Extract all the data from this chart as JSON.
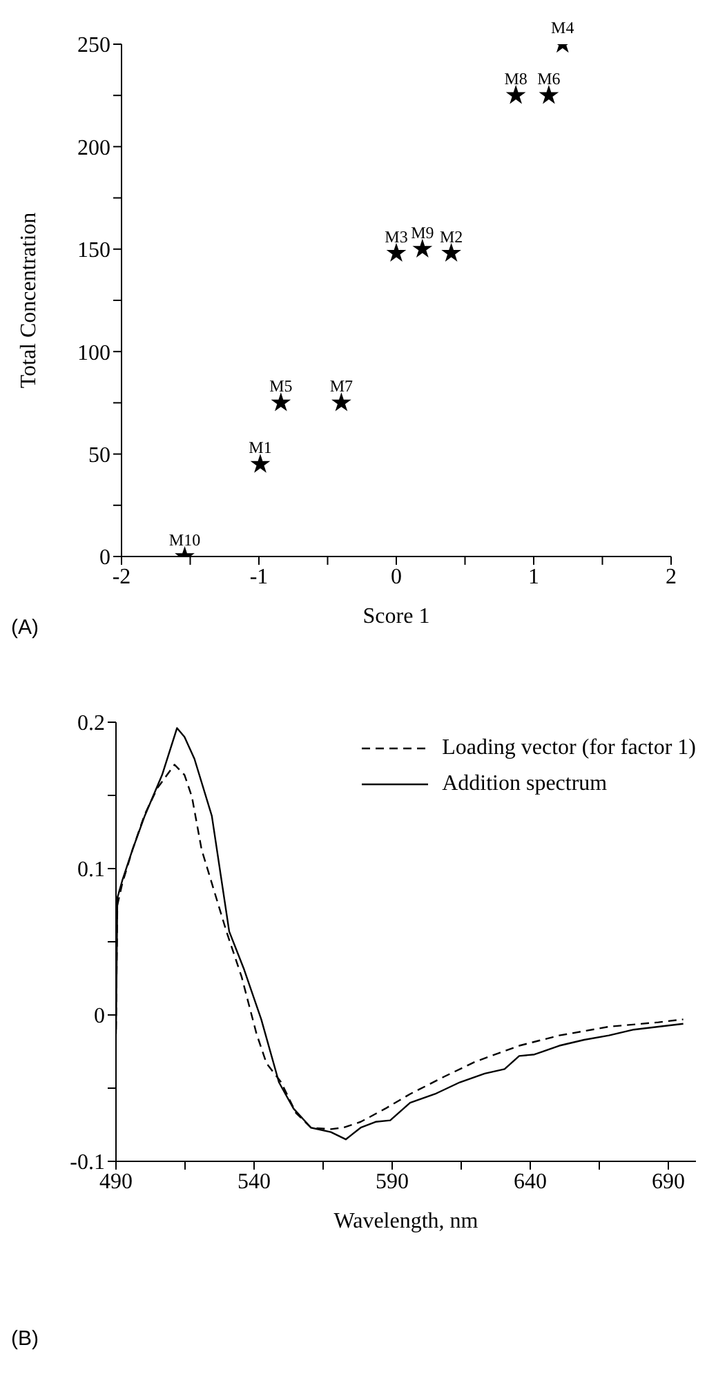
{
  "chart_data": [
    {
      "type": "scatter",
      "xlabel": "Score 1",
      "ylabel": "Total Concentration",
      "marker": "star",
      "color": "#000000",
      "x": [
        -0.99,
        0.4,
        0.0,
        1.21,
        -0.84,
        1.11,
        -0.4,
        0.87,
        0.19,
        -1.54
      ],
      "values": [
        45,
        148,
        148,
        250,
        75,
        225,
        75,
        225,
        150,
        0
      ],
      "xlim": [
        -2,
        2
      ],
      "xticks": [
        -2,
        {
          "value": -1.5,
          "label": null
        },
        -1,
        {
          "value": -0.5,
          "label": null
        },
        0,
        {
          "value": 0.5,
          "label": null
        },
        1,
        {
          "value": 1.5,
          "label": null
        },
        2
      ],
      "ylim": [
        0,
        250
      ],
      "yticks": [
        0,
        {
          "value": 25,
          "label": null
        },
        50,
        {
          "value": 75,
          "label": null
        },
        100,
        {
          "value": 125,
          "label": null
        },
        150,
        {
          "value": 175,
          "label": null
        },
        200,
        {
          "value": 225,
          "label": null
        },
        250
      ],
      "grid": false,
      "annotations": [
        "(A)",
        {
          "text": "M1",
          "x": -0.99,
          "y": 45
        },
        {
          "text": "M2",
          "x": 0.4,
          "y": 148
        },
        {
          "text": "M3",
          "x": 0.0,
          "y": 148
        },
        {
          "text": "M4",
          "x": 1.21,
          "y": 250
        },
        {
          "text": "M5",
          "x": -0.84,
          "y": 75
        },
        {
          "text": "M6",
          "x": 1.11,
          "y": 225
        },
        {
          "text": "M7",
          "x": -0.4,
          "y": 75
        },
        {
          "text": "M8",
          "x": 0.87,
          "y": 225
        },
        {
          "text": "M9",
          "x": 0.19,
          "y": 150
        },
        {
          "text": "M10",
          "x": -1.54,
          "y": 0
        }
      ]
    },
    {
      "type": "line",
      "xlabel": "Wavelength, nm",
      "marker": "none",
      "legend": "top right",
      "grid": false,
      "xlim": [
        490,
        700
      ],
      "xticks": [
        490,
        {
          "value": 515,
          "label": null
        },
        540,
        {
          "value": 565,
          "label": null
        },
        590,
        {
          "value": 615,
          "label": null
        },
        640,
        {
          "value": 665,
          "label": null
        },
        690
      ],
      "ylim": [
        -0.1,
        0.2
      ],
      "yticks": [
        -0.1,
        {
          "value": -0.05,
          "label": null
        },
        0,
        {
          "value": 0.05,
          "label": null
        },
        0.1,
        {
          "value": 0.15,
          "label": null
        },
        0.2
      ],
      "annotations": [
        "(B)"
      ],
      "series": [
        {
          "name": "Loading vector (for factor 1)",
          "color": "#000000",
          "line_style": "dashed",
          "x": [
            490,
            490.5,
            492.3,
            496,
            500.4,
            505,
            511.2,
            514.8,
            517.5,
            521,
            524.7,
            530,
            535.5,
            540.9,
            544.5,
            549.8,
            555.2,
            560.6,
            567.8,
            572.3,
            578.6,
            587.5,
            596.5,
            609,
            620,
            636,
            650.5,
            668.5,
            686.4,
            695.4
          ],
          "values": [
            -0.01,
            0.075,
            0.09,
            0.113,
            0.137,
            0.155,
            0.171,
            0.164,
            0.149,
            0.113,
            0.09,
            0.057,
            0.026,
            -0.013,
            -0.033,
            -0.046,
            -0.067,
            -0.077,
            -0.078,
            -0.077,
            -0.073,
            -0.064,
            -0.054,
            -0.042,
            -0.032,
            -0.021,
            -0.014,
            -0.008,
            -0.005,
            -0.003
          ]
        },
        {
          "name": "Addition spectrum",
          "color": "#000000",
          "line_style": "solid",
          "x": [
            490,
            490.5,
            492.3,
            496,
            500.4,
            506.7,
            512.1,
            514.8,
            518.4,
            524.7,
            531,
            536.4,
            542.6,
            549,
            554.3,
            560.6,
            567.8,
            573.2,
            578.6,
            584,
            589.3,
            596.5,
            605.5,
            614.5,
            623.5,
            630.7,
            636,
            641.5,
            650.5,
            659.5,
            668.5,
            677.5,
            686.4,
            695.4
          ],
          "values": [
            -0.013,
            0.08,
            0.092,
            0.113,
            0.136,
            0.164,
            0.196,
            0.19,
            0.175,
            0.136,
            0.057,
            0.031,
            -0.003,
            -0.046,
            -0.064,
            -0.077,
            -0.08,
            -0.085,
            -0.077,
            -0.073,
            -0.072,
            -0.06,
            -0.054,
            -0.046,
            -0.04,
            -0.037,
            -0.028,
            -0.027,
            -0.021,
            -0.017,
            -0.014,
            -0.01,
            -0.008,
            -0.006
          ]
        }
      ]
    }
  ]
}
